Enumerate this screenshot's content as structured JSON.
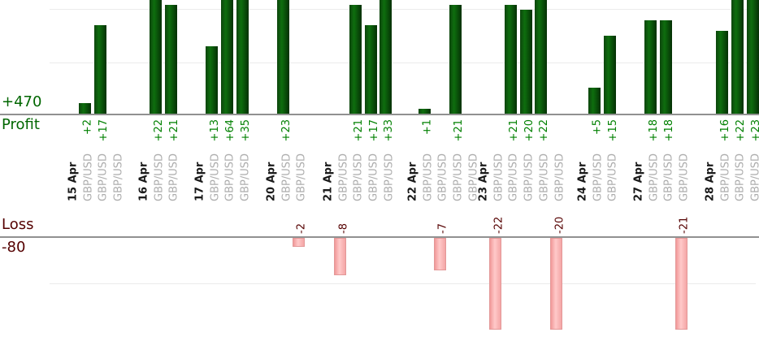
{
  "chart_data": {
    "type": "bar",
    "description": "Per-trade profit and loss bar chart grouped by close date; profits plotted upward from the Profit axis, losses downward from the Loss axis",
    "profit_axis": {
      "total": "+470",
      "label": "Profit"
    },
    "loss_axis": {
      "label": "Loss",
      "total": "-80"
    },
    "groups": [
      {
        "date": "15 Apr",
        "trades": [
          {
            "symbol": "GBP/USD",
            "value": 2
          },
          {
            "symbol": "GBP/USD",
            "value": 17
          },
          {
            "symbol": "GBP/USD",
            "value": 0
          }
        ]
      },
      {
        "date": "16 Apr",
        "trades": [
          {
            "symbol": "GBP/USD",
            "value": 22
          },
          {
            "symbol": "GBP/USD",
            "value": 21
          }
        ]
      },
      {
        "date": "17 Apr",
        "trades": [
          {
            "symbol": "GBP/USD",
            "value": 13
          },
          {
            "symbol": "GBP/USD",
            "value": 64
          },
          {
            "symbol": "GBP/USD",
            "value": 35
          }
        ]
      },
      {
        "date": "20 Apr",
        "trades": [
          {
            "symbol": "GBP/USD",
            "value": 23
          },
          {
            "symbol": "GBP/USD",
            "value": -2
          }
        ]
      },
      {
        "date": "21 Apr",
        "trades": [
          {
            "symbol": "GBP/USD",
            "value": -8
          },
          {
            "symbol": "GBP/USD",
            "value": 21
          },
          {
            "symbol": "GBP/USD",
            "value": 17
          },
          {
            "symbol": "GBP/USD",
            "value": 33
          }
        ]
      },
      {
        "date": "22 Apr",
        "trades": [
          {
            "symbol": "GBP/USD",
            "value": 1
          },
          {
            "symbol": "GBP/USD",
            "value": -7
          },
          {
            "symbol": "GBP/USD",
            "value": 21
          },
          {
            "symbol": "GBP/USD",
            "value": 0
          }
        ]
      },
      {
        "date": "23 Apr",
        "trades": [
          {
            "symbol": "GBP/USD",
            "value": -22
          },
          {
            "symbol": "GBP/USD",
            "value": 21
          },
          {
            "symbol": "GBP/USD",
            "value": 20
          },
          {
            "symbol": "GBP/USD",
            "value": 22
          },
          {
            "symbol": "GBP/USD",
            "value": -20
          }
        ]
      },
      {
        "date": "24 Apr",
        "trades": [
          {
            "symbol": "GBP/USD",
            "value": 5
          },
          {
            "symbol": "GBP/USD",
            "value": 15
          }
        ]
      },
      {
        "date": "27 Apr",
        "trades": [
          {
            "symbol": "GBP/USD",
            "value": 18
          },
          {
            "symbol": "GBP/USD",
            "value": 18
          },
          {
            "symbol": "GBP/USD",
            "value": -21
          }
        ]
      },
      {
        "date": "28 Apr",
        "trades": [
          {
            "symbol": "GBP/USD",
            "value": 16
          },
          {
            "symbol": "GBP/USD",
            "value": 22
          },
          {
            "symbol": "GBP/USD",
            "value": 23
          }
        ]
      }
    ],
    "colors": {
      "profit_bar": "#0e6e0e",
      "loss_bar": "#f7b0b0",
      "profit_text": "#008000",
      "loss_text": "#550000",
      "axis_profit_text": "#006600",
      "axis_loss_text": "#550000",
      "date_text": "#1a1a1a",
      "symbol_text": "#adadad",
      "axis_line": "#919191",
      "gridline": "#ebebeb"
    }
  }
}
